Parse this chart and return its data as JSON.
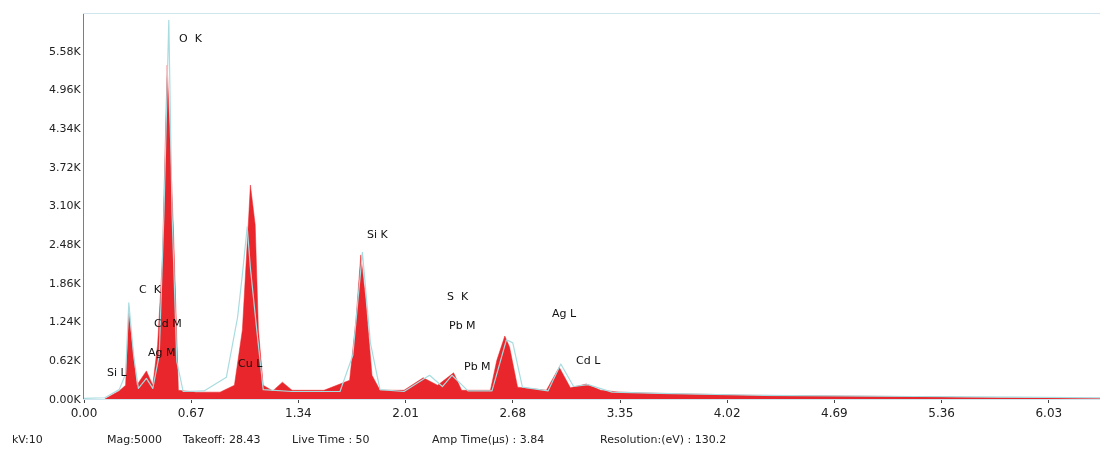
{
  "chart_data": {
    "type": "area",
    "xlim": [
      0,
      6.35
    ],
    "ylim": [
      0,
      6170
    ],
    "xticks": [
      {
        "value": 0,
        "label": "0.00"
      },
      {
        "value": 0.67,
        "label": "0.67"
      },
      {
        "value": 1.34,
        "label": "1.34"
      },
      {
        "value": 2.01,
        "label": "2.01"
      },
      {
        "value": 2.68,
        "label": "2.68"
      },
      {
        "value": 3.35,
        "label": "3.35"
      },
      {
        "value": 4.02,
        "label": "4.02"
      },
      {
        "value": 4.69,
        "label": "4.69"
      },
      {
        "value": 5.36,
        "label": "5.36"
      },
      {
        "value": 6.03,
        "label": "6.03"
      }
    ],
    "yticks": [
      {
        "value": 0,
        "label": "0.00K"
      },
      {
        "value": 620,
        "label": "0.62K"
      },
      {
        "value": 1240,
        "label": "1.24K"
      },
      {
        "value": 1860,
        "label": "1.86K"
      },
      {
        "value": 2480,
        "label": "2.48K"
      },
      {
        "value": 3100,
        "label": "3.10K"
      },
      {
        "value": 3720,
        "label": "3.72K"
      },
      {
        "value": 4340,
        "label": "4.34K"
      },
      {
        "value": 4960,
        "label": "4.96K"
      },
      {
        "value": 5580,
        "label": "5.58K"
      }
    ],
    "legend": false,
    "series": [
      {
        "color": "#e8262b",
        "x": [
          0.13,
          0.22,
          0.26,
          0.28,
          0.33,
          0.39,
          0.43,
          0.46,
          0.49,
          0.52,
          0.54,
          0.56,
          0.59,
          0.7,
          0.85,
          0.94,
          0.99,
          1.03,
          1.04,
          1.07,
          1.09,
          1.12,
          1.18,
          1.24,
          1.3,
          1.5,
          1.66,
          1.7,
          1.73,
          1.76,
          1.8,
          1.85,
          2.0,
          2.12,
          2.21,
          2.31,
          2.36,
          2.54,
          2.58,
          2.63,
          2.66,
          2.71,
          2.89,
          2.97,
          3.04,
          3.14,
          3.23,
          3.35,
          3.6,
          4.16,
          5.1,
          5.73,
          6.35
        ],
        "values": [
          0,
          130,
          220,
          1380,
          220,
          450,
          220,
          870,
          2230,
          5350,
          3990,
          2630,
          140,
          110,
          110,
          220,
          1110,
          2950,
          3430,
          2790,
          1110,
          220,
          130,
          270,
          140,
          140,
          300,
          1270,
          2310,
          1600,
          380,
          140,
          140,
          340,
          220,
          420,
          140,
          140,
          620,
          1010,
          830,
          190,
          140,
          510,
          180,
          240,
          140,
          110,
          90,
          60,
          40,
          20,
          10
        ]
      },
      {
        "type": "line",
        "color": "#a8dce0",
        "x": [
          0.0,
          0.13,
          0.22,
          0.26,
          0.28,
          0.31,
          0.34,
          0.39,
          0.43,
          0.47,
          0.5,
          0.53,
          0.55,
          0.58,
          0.62,
          0.75,
          0.89,
          0.96,
          0.99,
          1.02,
          1.04,
          1.08,
          1.12,
          1.3,
          1.6,
          1.68,
          1.74,
          1.79,
          1.85,
          2.0,
          2.16,
          2.24,
          2.3,
          2.4,
          2.55,
          2.64,
          2.68,
          2.74,
          2.9,
          2.98,
          3.06,
          3.15,
          3.3,
          3.6,
          4.2,
          5.2,
          6.35
        ],
        "values": [
          10,
          20,
          150,
          400,
          1540,
          700,
          170,
          330,
          170,
          700,
          3000,
          6070,
          3000,
          600,
          120,
          130,
          350,
          1310,
          2000,
          2760,
          2100,
          1100,
          150,
          120,
          120,
          700,
          2350,
          900,
          150,
          120,
          380,
          200,
          380,
          130,
          130,
          950,
          900,
          190,
          130,
          560,
          200,
          230,
          110,
          90,
          60,
          40,
          20
        ]
      }
    ],
    "annotations": [
      "Si L",
      "C  K",
      "Ag M",
      "Cd M",
      "O  K",
      "Cu L",
      "Si K",
      "S  K",
      "Pb M",
      "Pb M",
      "Ag L",
      "Cd L",
      "kV:10",
      "Mag:5000",
      "Takeoff: 28.43",
      "Live Time : 50",
      "Amp Time(µs) : 3.84",
      "Resolution:(eV) : 130.2"
    ]
  }
}
